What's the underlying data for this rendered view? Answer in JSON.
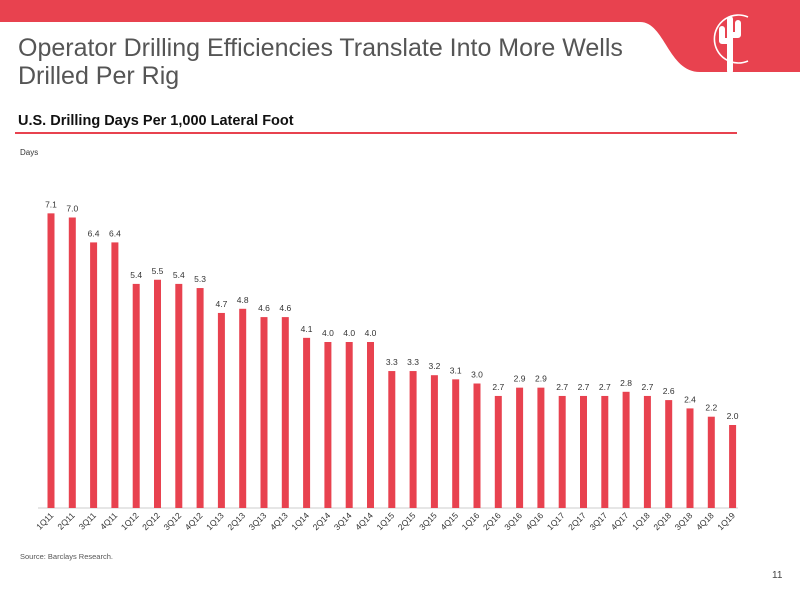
{
  "slide": {
    "title": "Operator Drilling Efficiencies Translate Into More Wells Drilled Per Rig",
    "subtitle": "U.S. Drilling Days Per 1,000 Lateral Foot",
    "units": "Days",
    "source": "Source: Barclays Research.",
    "page_number": "11"
  },
  "colors": {
    "accent": "#e8424f",
    "bar": "#e8424f",
    "text": "#333333"
  },
  "logo": {
    "icon": "cactus-sun-icon"
  },
  "chart_data": {
    "type": "bar",
    "title": "U.S. Drilling Days Per 1,000 Lateral Foot",
    "ylabel": "Days",
    "xlabel": "",
    "ylim": [
      0,
      7.5
    ],
    "grid": false,
    "categories": [
      "1Q11",
      "2Q11",
      "3Q11",
      "4Q11",
      "1Q12",
      "2Q12",
      "3Q12",
      "4Q12",
      "1Q13",
      "2Q13",
      "3Q13",
      "4Q13",
      "1Q14",
      "2Q14",
      "3Q14",
      "4Q14",
      "1Q15",
      "2Q15",
      "3Q15",
      "4Q15",
      "1Q16",
      "2Q16",
      "3Q16",
      "4Q16",
      "1Q17",
      "2Q17",
      "3Q17",
      "4Q17",
      "1Q18",
      "2Q18",
      "3Q18",
      "4Q18",
      "1Q19"
    ],
    "values": [
      7.1,
      7.0,
      6.4,
      6.4,
      5.4,
      5.5,
      5.4,
      5.3,
      4.7,
      4.8,
      4.6,
      4.6,
      4.1,
      4.0,
      4.0,
      4.0,
      3.3,
      3.3,
      3.2,
      3.1,
      3.0,
      2.7,
      2.9,
      2.9,
      2.7,
      2.7,
      2.7,
      2.8,
      2.7,
      2.6,
      2.4,
      2.2,
      2.0
    ],
    "labels": [
      "7.1",
      "7.0",
      "6.4",
      "6.4",
      "5.4",
      "5.5",
      "5.4",
      "5.3",
      "4.7",
      "4.8",
      "4.6",
      "4.6",
      "4.1",
      "4.0",
      "4.0",
      "4.0",
      "3.3",
      "3.3",
      "3.2",
      "3.1",
      "3.0",
      "2.7",
      "2.9",
      "2.9",
      "2.7",
      "2.7",
      "2.7",
      "2.8",
      "2.7",
      "2.6",
      "2.4",
      "2.2",
      "2.0"
    ]
  }
}
